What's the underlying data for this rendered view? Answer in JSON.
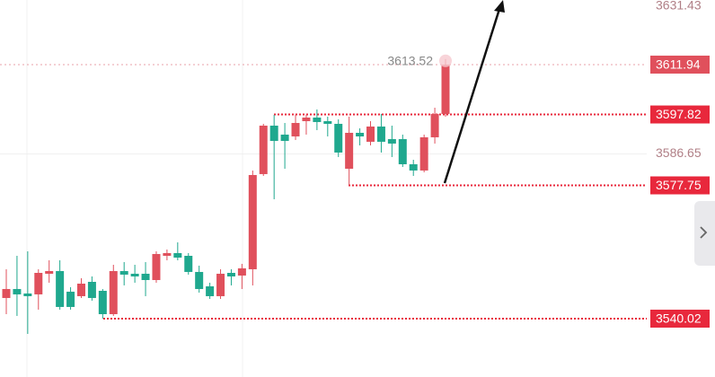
{
  "chart_data": {
    "type": "candlestick",
    "up_color": "#e0505c",
    "down_color": "#1fa88e",
    "open": [
      3545.87,
      3548.41,
      3547.14,
      3546.89,
      3552.73,
      3553.49,
      3547.65,
      3546.38,
      3550.44,
      3547.9,
      3541.29,
      3553.49,
      3552.73,
      3552.73,
      3550.95,
      3557.81,
      3558.58,
      3557.81,
      3553.24,
      3549.17,
      3546.38,
      3552.98,
      3552.22,
      3554.0,
      3580.94,
      3594.66,
      3592.12,
      3591.61,
      3595.93,
      3596.95,
      3595.93,
      3595.17,
      3582.46,
      3592.63,
      3590.09,
      3594.41,
      3590.85,
      3590.85,
      3583.73,
      3581.96,
      3591.36,
      3597.97
    ],
    "high": [
      3554.0,
      3557.81,
      3559.08,
      3554.0,
      3556.54,
      3556.54,
      3548.92,
      3551.46,
      3551.97,
      3548.41,
      3555.27,
      3556.03,
      3555.27,
      3556.03,
      3559.08,
      3559.59,
      3561.62,
      3558.58,
      3555.02,
      3550.19,
      3554.0,
      3554.0,
      3555.53,
      3581.96,
      3595.17,
      3597.71,
      3595.42,
      3597.71,
      3597.71,
      3599.24,
      3597.2,
      3596.44,
      3597.2,
      3593.9,
      3595.93,
      3597.97,
      3594.66,
      3592.12,
      3585.0,
      3592.12,
      3599.74,
      3613.52
    ],
    "low": [
      3541.29,
      3540.79,
      3535.7,
      3542.57,
      3550.19,
      3542.57,
      3542.57,
      3545.87,
      3545.11,
      3540.02,
      3540.79,
      3549.43,
      3550.19,
      3546.38,
      3550.19,
      3556.54,
      3556.54,
      3552.48,
      3547.39,
      3545.61,
      3545.61,
      3549.43,
      3548.41,
      3549.43,
      3580.43,
      3573.82,
      3582.46,
      3590.6,
      3592.12,
      3593.39,
      3591.61,
      3585.77,
      3577.75,
      3589.07,
      3589.07,
      3587.04,
      3585.77,
      3582.97,
      3580.43,
      3581.45,
      3589.58,
      3597.2
    ],
    "close": [
      3548.41,
      3546.89,
      3546.38,
      3552.98,
      3553.49,
      3543.33,
      3543.33,
      3549.93,
      3545.87,
      3541.29,
      3553.49,
      3552.48,
      3551.97,
      3550.95,
      3558.32,
      3558.58,
      3557.3,
      3553.24,
      3548.41,
      3546.38,
      3552.73,
      3551.97,
      3554.26,
      3580.68,
      3594.66,
      3590.34,
      3590.34,
      3595.42,
      3596.95,
      3595.68,
      3595.17,
      3587.04,
      3592.63,
      3591.61,
      3594.41,
      3590.09,
      3589.58,
      3583.73,
      3581.96,
      3591.36,
      3597.97,
      3611.94
    ],
    "ylim": [
      3523.5,
      3631.5
    ],
    "yticks": [
      3631.43,
      3586.65
    ],
    "grid": true,
    "price_lines": [
      3611.94,
      3597.82,
      3577.75,
      3540.02
    ],
    "current_price_color": "#e8a0a8",
    "price_line_color": "#e8283c",
    "max_label": 3613.52
  }
}
